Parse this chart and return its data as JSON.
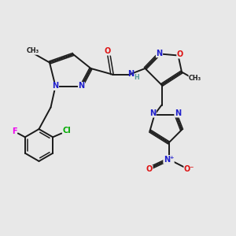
{
  "bg_color": "#e8e8e8",
  "bond_color": "#1a1a1a",
  "N_color": "#2020cc",
  "O_color": "#dd1111",
  "F_color": "#ee00ee",
  "Cl_color": "#00aa00",
  "H_color": "#559999",
  "text_color": "#1a1a1a",
  "figsize": [
    3.0,
    3.0
  ],
  "dpi": 100,
  "xlim": [
    0,
    10
  ],
  "ylim": [
    0,
    10
  ]
}
